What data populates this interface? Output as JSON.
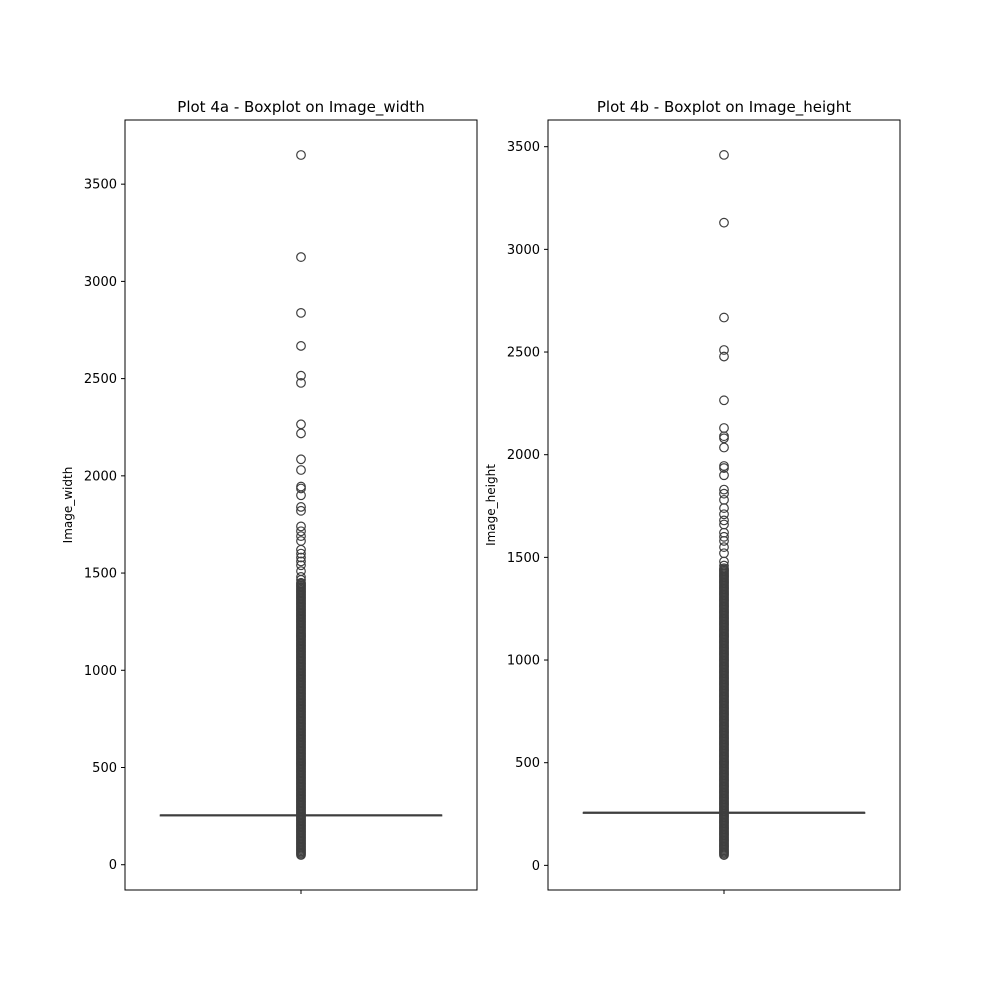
{
  "chart_data": [
    {
      "type": "box",
      "title": "Plot 4a - Boxplot on Image_width",
      "xlabel": "",
      "ylabel": "Image_width",
      "ylim": [
        -130,
        3830
      ],
      "yticks": [
        0,
        500,
        1000,
        1500,
        2000,
        2500,
        3000,
        3500
      ],
      "box": {
        "q1": 254,
        "median": 256,
        "q3": 256,
        "whisker_low": 254,
        "whisker_high": 256
      },
      "outliers_range": [
        50,
        1450
      ],
      "outliers": [
        3650,
        3125,
        2838,
        2668,
        2515,
        2478,
        2265,
        2218,
        2085,
        2030,
        1945,
        1935,
        1900,
        1840,
        1820,
        1740,
        1715,
        1690,
        1665,
        1620,
        1600,
        1580,
        1560,
        1540,
        1510,
        1480,
        1465,
        1450
      ],
      "color": "#3f3f3f"
    },
    {
      "type": "box",
      "title": "Plot 4b - Boxplot on Image_height",
      "xlabel": "",
      "ylabel": "Image_height",
      "ylim": [
        -120,
        3630
      ],
      "yticks": [
        0,
        500,
        1000,
        1500,
        2000,
        2500,
        3000,
        3500
      ],
      "box": {
        "q1": 256,
        "median": 258,
        "q3": 258,
        "whisker_low": 256,
        "whisker_high": 258
      },
      "outliers_range": [
        50,
        1450
      ],
      "outliers": [
        3460,
        3130,
        2668,
        2510,
        2478,
        2265,
        2130,
        2090,
        2080,
        2035,
        1945,
        1935,
        1900,
        1830,
        1810,
        1780,
        1740,
        1710,
        1680,
        1660,
        1620,
        1600,
        1580,
        1550,
        1520,
        1480,
        1460
      ],
      "color": "#3f3f3f"
    }
  ]
}
